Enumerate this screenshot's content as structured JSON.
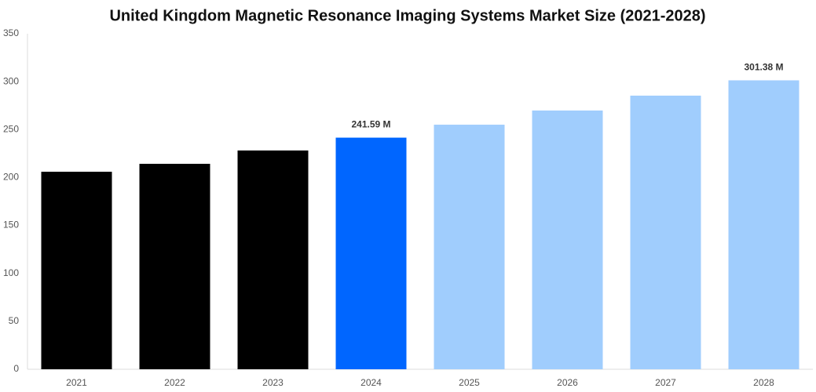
{
  "chart_data": {
    "type": "bar",
    "title": "United Kingdom Magnetic Resonance Imaging Systems Market Size (2021-2028)",
    "categories": [
      "2021",
      "2022",
      "2023",
      "2024",
      "2025",
      "2026",
      "2027",
      "2028"
    ],
    "values": [
      206,
      214.3,
      228.2,
      241.59,
      255.1,
      269.9,
      285.4,
      301.38
    ],
    "value_labels": [
      null,
      null,
      null,
      "241.59 M",
      null,
      null,
      null,
      "301.38 M"
    ],
    "colors": [
      "#000000",
      "#000000",
      "#000000",
      "#0066ff",
      "#a0cdfd",
      "#a0cdfd",
      "#a0cdfd",
      "#a0cdfd"
    ],
    "ylim": [
      0,
      350
    ],
    "yticks": [
      0,
      50,
      100,
      150,
      200,
      250,
      300,
      350
    ],
    "grid": false
  }
}
